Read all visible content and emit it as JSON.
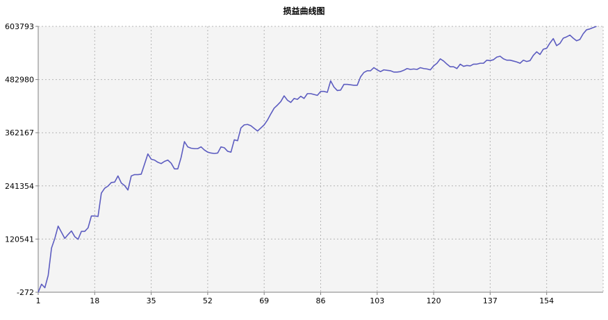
{
  "chart_data": {
    "type": "line",
    "title": "损益曲线图",
    "xlabel": "",
    "ylabel": "",
    "xlim": [
      1,
      171
    ],
    "ylim": [
      -272,
      603793
    ],
    "x_ticks": [
      "1",
      "18",
      "35",
      "52",
      "69",
      "86",
      "103",
      "120",
      "137",
      "154"
    ],
    "y_ticks": [
      "-272",
      "120541",
      "241354",
      "362167",
      "482980",
      "603793"
    ],
    "grid": true,
    "line_color": "#5c5cc0",
    "plot_background": "#f4f4f4",
    "series": [
      {
        "values": [
          -272,
          18000,
          10000,
          38000,
          100000,
          122000,
          150000,
          136000,
          122000,
          131000,
          139000,
          126000,
          120000,
          138000,
          138000,
          146000,
          173000,
          173000,
          172000,
          225000,
          236000,
          241000,
          249000,
          250000,
          264000,
          248000,
          242000,
          232000,
          264000,
          267000,
          267000,
          268000,
          291000,
          314000,
          302000,
          300000,
          295000,
          292000,
          297000,
          300000,
          293000,
          280000,
          280000,
          306000,
          342000,
          330000,
          327000,
          326000,
          326000,
          330000,
          323000,
          318000,
          316000,
          315000,
          316000,
          330000,
          328000,
          320000,
          318000,
          346000,
          344000,
          373000,
          380000,
          381000,
          378000,
          372000,
          366000,
          373000,
          380000,
          391000,
          405000,
          418000,
          425000,
          433000,
          446000,
          436000,
          431000,
          440000,
          438000,
          445000,
          440000,
          451000,
          451000,
          449000,
          447000,
          456000,
          456000,
          454000,
          480000,
          466000,
          458000,
          459000,
          472000,
          472000,
          471000,
          470000,
          470000,
          489000,
          499000,
          503000,
          503000,
          510000,
          505000,
          501000,
          505000,
          504000,
          503000,
          500000,
          500000,
          501000,
          504000,
          508000,
          506000,
          507000,
          506000,
          510000,
          508000,
          507000,
          505000,
          514000,
          520000,
          530000,
          525000,
          518000,
          512000,
          512000,
          508000,
          518000,
          513000,
          515000,
          514000,
          518000,
          518000,
          520000,
          520000,
          527000,
          526000,
          528000,
          534000,
          536000,
          530000,
          527000,
          527000,
          525000,
          523000,
          520000,
          527000,
          524000,
          526000,
          538000,
          546000,
          540000,
          552000,
          554000,
          566000,
          576000,
          560000,
          565000,
          577000,
          580000,
          584000,
          577000,
          571000,
          574000,
          587000,
          596000,
          598000,
          601000,
          603793
        ]
      }
    ]
  }
}
